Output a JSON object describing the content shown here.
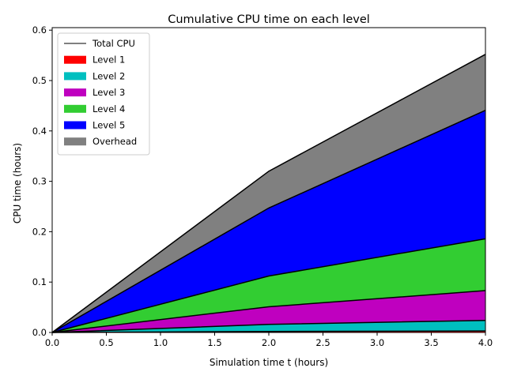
{
  "chart_data": {
    "type": "area",
    "title": "Cumulative CPU time on each level",
    "xlabel": "Simulation time t (hours)",
    "ylabel": "CPU time (hours)",
    "xlim": [
      0,
      4
    ],
    "ylim": [
      0,
      0.605
    ],
    "xticks": [
      "0.0",
      "0.5",
      "1.0",
      "1.5",
      "2.0",
      "2.5",
      "3.0",
      "3.5",
      "4.0"
    ],
    "yticks": [
      "0.0",
      "0.1",
      "0.2",
      "0.3",
      "0.4",
      "0.5",
      "0.6"
    ],
    "grid": false,
    "legend_position": "top-left",
    "x": [
      0,
      2,
      4
    ],
    "stacked": true,
    "series": [
      {
        "name": "Level 1",
        "color": "#ff0000",
        "values": [
          0,
          0.002,
          0.003
        ]
      },
      {
        "name": "Level 2",
        "color": "#00bfbf",
        "values": [
          0,
          0.014,
          0.021
        ]
      },
      {
        "name": "Level 3",
        "color": "#bf00bf",
        "values": [
          0,
          0.035,
          0.059
        ]
      },
      {
        "name": "Level 4",
        "color": "#32cd32",
        "values": [
          0,
          0.061,
          0.103
        ]
      },
      {
        "name": "Level 5",
        "color": "#0000ff",
        "values": [
          0,
          0.135,
          0.255
        ]
      },
      {
        "name": "Overhead",
        "color": "#808080",
        "values": [
          0,
          0.073,
          0.111
        ]
      }
    ],
    "total": {
      "name": "Total CPU",
      "color": "#000000",
      "values": [
        0,
        0.32,
        0.552
      ]
    },
    "legend_order": [
      "Total CPU",
      "Level 1",
      "Level 2",
      "Level 3",
      "Level 4",
      "Level 5",
      "Overhead"
    ]
  }
}
